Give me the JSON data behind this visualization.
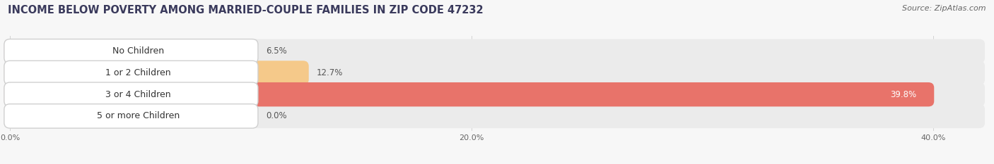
{
  "title": "INCOME BELOW POVERTY AMONG MARRIED-COUPLE FAMILIES IN ZIP CODE 47232",
  "source": "Source: ZipAtlas.com",
  "categories": [
    "No Children",
    "1 or 2 Children",
    "3 or 4 Children",
    "5 or more Children"
  ],
  "values": [
    6.5,
    12.7,
    39.8,
    0.0
  ],
  "value_labels": [
    "6.5%",
    "12.7%",
    "39.8%",
    "0.0%"
  ],
  "bar_colors": [
    "#f5a0b5",
    "#f5c98a",
    "#e8736a",
    "#a8c4e0"
  ],
  "track_color": "#ebebeb",
  "label_box_color": "white",
  "xlim_max": 42.0,
  "xtick_positions": [
    0.0,
    20.0,
    40.0
  ],
  "xtick_labels": [
    "0.0%",
    "20.0%",
    "40.0%"
  ],
  "bar_height": 0.62,
  "title_fontsize": 10.5,
  "label_fontsize": 9,
  "value_fontsize": 8.5,
  "source_fontsize": 8,
  "background_color": "#f7f7f7",
  "title_color": "#3a3a5c",
  "label_color": "#333333",
  "value_color_dark": "#555555",
  "value_color_light": "#ffffff"
}
